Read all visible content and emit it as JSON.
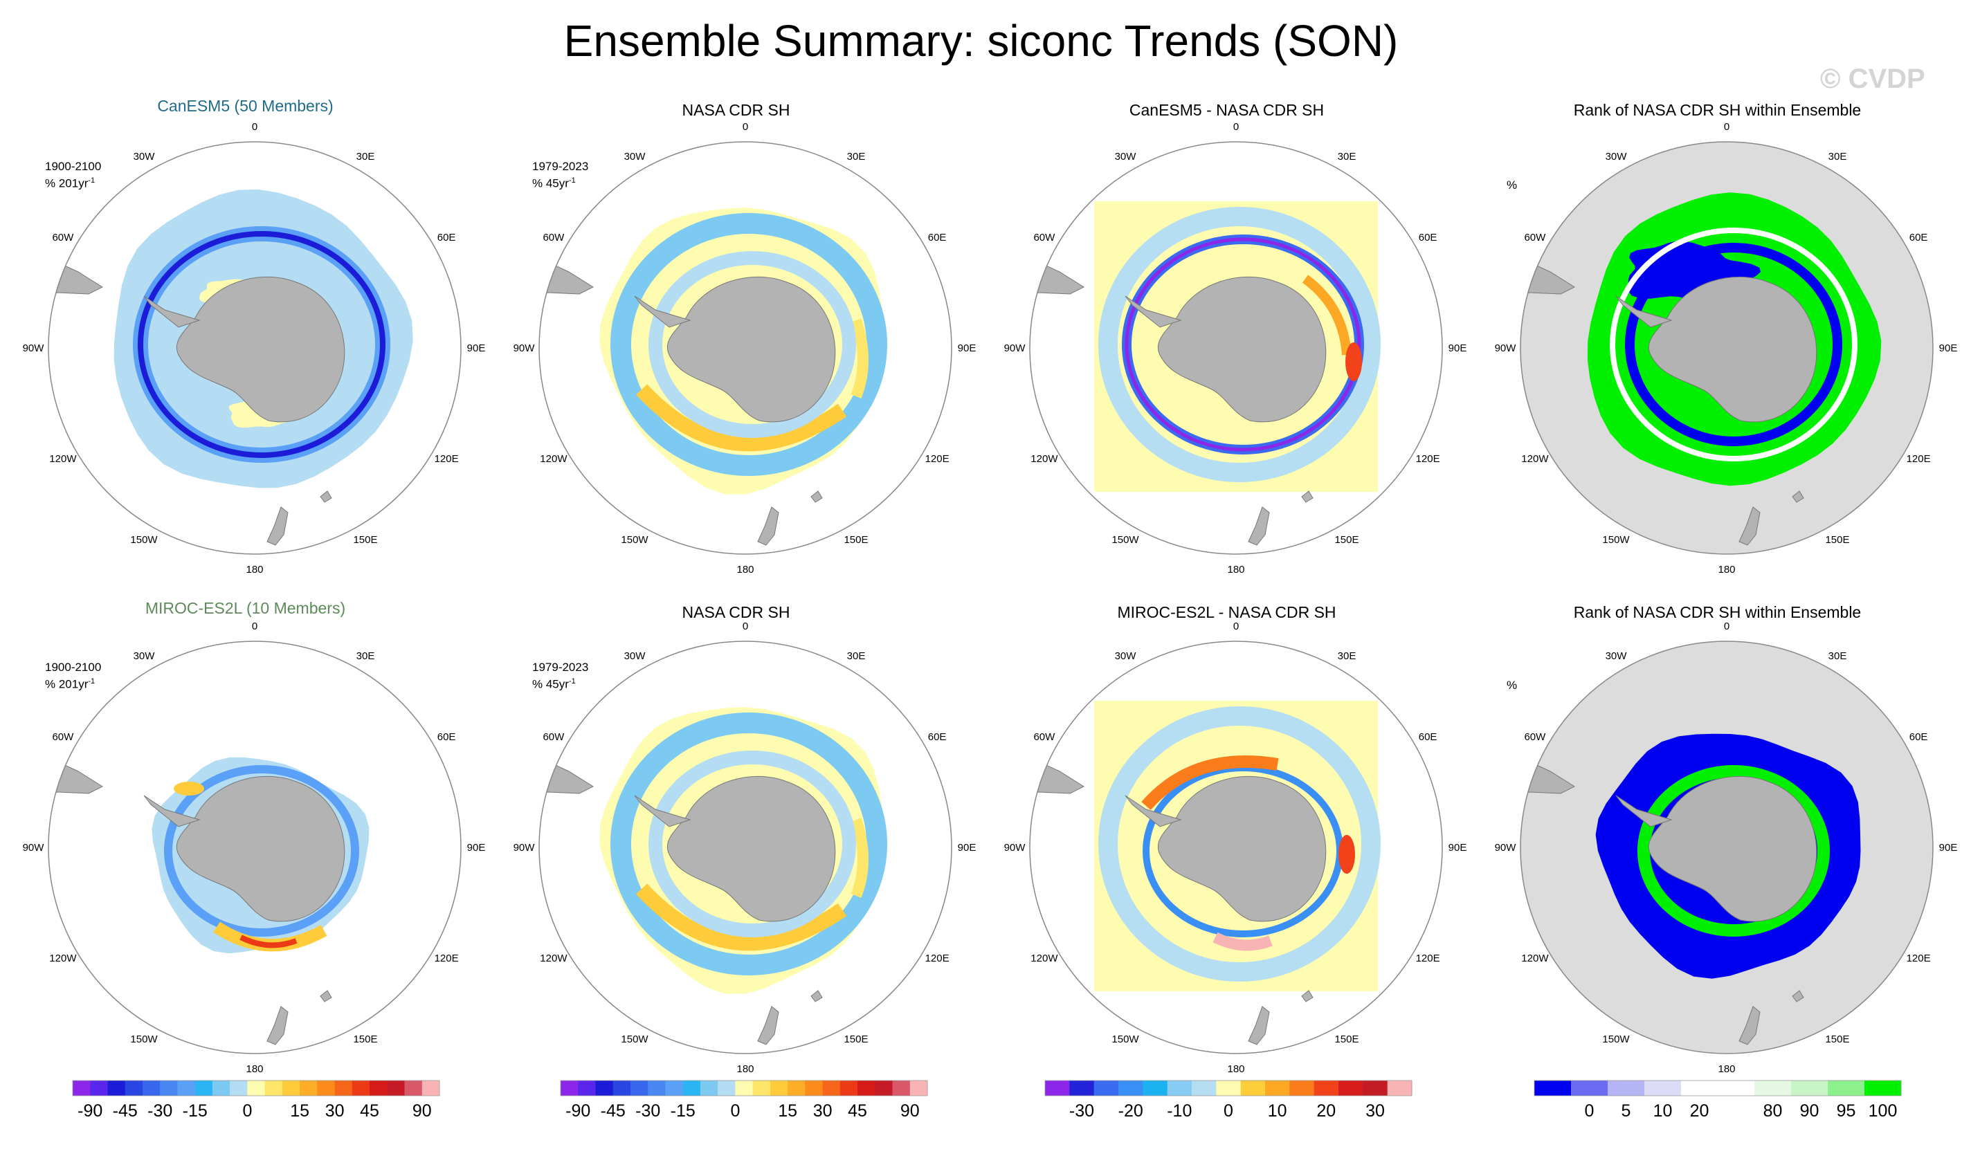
{
  "title": "Ensemble Summary: siconc Trends (SON)",
  "watermark": "© CVDP",
  "lon_labels": [
    "0",
    "30E",
    "60E",
    "90E",
    "120E",
    "150E",
    "180",
    "150W",
    "120W",
    "90W",
    "60W",
    "30W"
  ],
  "colors": {
    "land": "#b3b3b3",
    "ocean_bg": "#dcdcdc",
    "canesm_title": "#1f6a8a",
    "miroc_title": "#5e8a5a"
  },
  "rows": [
    {
      "panels": [
        {
          "title": "CanESM5 (50 Members)",
          "type": "trend",
          "period": "1900-2100",
          "units": "% 201yr",
          "units_sup": "-1"
        },
        {
          "title": "NASA CDR SH",
          "type": "trend",
          "period": "1979-2023",
          "units": "% 45yr",
          "units_sup": "-1"
        },
        {
          "title": "CanESM5 - NASA CDR SH",
          "type": "diff"
        },
        {
          "title": "Rank of NASA CDR SH within Ensemble",
          "type": "rank",
          "units": "%"
        }
      ]
    },
    {
      "panels": [
        {
          "title": "MIROC-ES2L (10 Members)",
          "type": "trend",
          "period": "1900-2100",
          "units": "% 201yr",
          "units_sup": "-1"
        },
        {
          "title": "NASA CDR SH",
          "type": "trend",
          "period": "1979-2023",
          "units": "% 45yr",
          "units_sup": "-1"
        },
        {
          "title": "MIROC-ES2L - NASA CDR SH",
          "type": "diff"
        },
        {
          "title": "Rank of NASA CDR SH within Ensemble",
          "type": "rank",
          "units": "%"
        }
      ]
    }
  ],
  "chart_data": [
    {
      "type": "heatmap",
      "name": "trend_colorbar",
      "colors": [
        "#8c26e8",
        "#5a26ee",
        "#1b1bd8",
        "#2a46e2",
        "#3866ec",
        "#4a86f2",
        "#5aa0f6",
        "#2ab4f4",
        "#7ccaf2",
        "#b4dcf2",
        "#fdfcb0",
        "#fde66a",
        "#fecb3a",
        "#fdae26",
        "#fb8c1c",
        "#f6661a",
        "#ed3a16",
        "#d61a18",
        "#c61a26",
        "#d85868",
        "#f8b4b4"
      ],
      "tick_labels": [
        "-90",
        "-45",
        "-30",
        "-15",
        "0",
        "15",
        "30",
        "45",
        "90"
      ]
    },
    {
      "type": "heatmap",
      "name": "diff_colorbar",
      "colors": [
        "#8c26e8",
        "#2222d8",
        "#3a6af0",
        "#3a8ff4",
        "#1cb2f2",
        "#86cbf2",
        "#b6def2",
        "#fdfcb0",
        "#fecd3a",
        "#fda824",
        "#fb7c1a",
        "#f2421a",
        "#d61c1c",
        "#c41c24",
        "#f8b4b4"
      ],
      "tick_labels": [
        "-30",
        "-20",
        "-10",
        "0",
        "10",
        "20",
        "30"
      ]
    },
    {
      "type": "heatmap",
      "name": "rank_colorbar",
      "colors": [
        "#0000f0",
        "#6a6af2",
        "#b4b4f4",
        "#dcdcf6",
        "#ffffff",
        "#ffffff",
        "#e4f8e4",
        "#c8f4c8",
        "#8cf08c",
        "#00f000"
      ],
      "tick_labels": [
        "0",
        "5",
        "10",
        "20",
        "80",
        "90",
        "95",
        "100"
      ]
    }
  ]
}
